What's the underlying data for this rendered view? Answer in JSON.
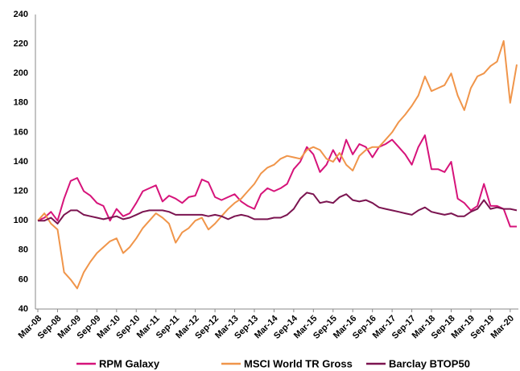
{
  "chart_data": {
    "type": "line",
    "categories": [
      "Mar-08",
      null,
      null,
      "Sep-08",
      null,
      null,
      "Mar-09",
      null,
      null,
      "Sep-09",
      null,
      null,
      "Mar-10",
      null,
      null,
      "Sep-10",
      null,
      null,
      "Mar-11",
      null,
      null,
      "Sep-11",
      null,
      null,
      "Mar-12",
      null,
      null,
      "Sep-12",
      null,
      null,
      "Mar-13",
      null,
      null,
      "Sep-13",
      null,
      null,
      "Mar-14",
      null,
      null,
      "Sep-14",
      null,
      null,
      "Mar-15",
      null,
      null,
      "Sep-15",
      null,
      null,
      "Mar-16",
      null,
      null,
      "Sep-16",
      null,
      null,
      "Mar-17",
      null,
      null,
      "Sep-17",
      null,
      null,
      "Mar-18",
      null,
      null,
      "Sep-18",
      null,
      null,
      "Mar-19",
      null,
      null,
      "Sep-19",
      null,
      null,
      "Mar-20",
      null
    ],
    "series": [
      {
        "name": "RPM Galaxy",
        "color": "#d6137a",
        "values": [
          100,
          102,
          106,
          100,
          115,
          127,
          129,
          120,
          117,
          112,
          110,
          100,
          108,
          103,
          105,
          112,
          120,
          122,
          124,
          113,
          117,
          115,
          112,
          116,
          117,
          128,
          126,
          116,
          114,
          116,
          118,
          113,
          110,
          108,
          118,
          122,
          120,
          122,
          125,
          135,
          140,
          150,
          145,
          133,
          138,
          148,
          140,
          155,
          145,
          152,
          150,
          143,
          150,
          152,
          155,
          150,
          145,
          138,
          150,
          158,
          135,
          135,
          133,
          140,
          115,
          112,
          107,
          110,
          125,
          110,
          110,
          108,
          96,
          96
        ]
      },
      {
        "name": "MSCI World TR Gross",
        "color": "#f0954a",
        "values": [
          100,
          105,
          98,
          94,
          65,
          60,
          54,
          65,
          72,
          78,
          82,
          86,
          88,
          78,
          82,
          88,
          95,
          100,
          105,
          102,
          98,
          85,
          92,
          95,
          100,
          102,
          94,
          98,
          103,
          108,
          112,
          115,
          120,
          125,
          132,
          136,
          138,
          142,
          144,
          143,
          142,
          148,
          150,
          148,
          142,
          140,
          146,
          138,
          134,
          144,
          148,
          150,
          150,
          155,
          160,
          167,
          172,
          178,
          185,
          198,
          188,
          190,
          192,
          200,
          185,
          175,
          190,
          198,
          200,
          205,
          208,
          222,
          180,
          206
        ]
      },
      {
        "name": "Barclay BTOP50",
        "color": "#7b1450",
        "values": [
          100,
          100,
          102,
          98,
          104,
          107,
          107,
          104,
          103,
          102,
          101,
          102,
          103,
          101,
          102,
          104,
          106,
          107,
          107,
          107,
          106,
          104,
          104,
          104,
          104,
          104,
          103,
          104,
          103,
          101,
          103,
          104,
          103,
          101,
          101,
          101,
          102,
          102,
          104,
          108,
          115,
          119,
          118,
          112,
          113,
          112,
          116,
          118,
          114,
          113,
          114,
          112,
          109,
          108,
          107,
          106,
          105,
          104,
          107,
          109,
          106,
          105,
          104,
          105,
          103,
          103,
          106,
          108,
          114,
          108,
          109,
          108,
          108,
          107
        ]
      }
    ],
    "ylim": [
      40,
      240
    ],
    "yticks": [
      40,
      60,
      80,
      100,
      120,
      140,
      160,
      180,
      200,
      220,
      240
    ],
    "grid": false
  }
}
